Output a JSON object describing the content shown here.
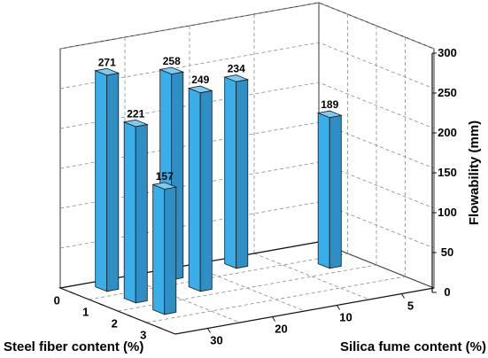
{
  "chart_data": {
    "type": "bar",
    "projection": "3d",
    "x_axis": {
      "label": "Steel fiber content (%)",
      "ticks": [
        "0",
        "1",
        "2",
        "3"
      ]
    },
    "y_axis": {
      "label": "Silica fume content (%)",
      "ticks": [
        "5",
        "10",
        "20",
        "30"
      ]
    },
    "z_axis": {
      "label": "Flowability (mm)",
      "ticks": [
        "0",
        "50",
        "100",
        "150",
        "200",
        "250",
        "300"
      ],
      "range": [
        0,
        300
      ]
    },
    "bar_color": "#3aaee8",
    "bars": [
      {
        "steel_fiber": "2",
        "silica_fume": "30",
        "value": 157,
        "label": "157"
      },
      {
        "steel_fiber": "0",
        "silica_fume": "30",
        "value": 271,
        "label": "271"
      },
      {
        "steel_fiber": "1",
        "silica_fume": "30",
        "value": 221,
        "label": "221"
      },
      {
        "steel_fiber": "0",
        "silica_fume": "20",
        "value": 258,
        "label": "258"
      },
      {
        "steel_fiber": "1",
        "silica_fume": "20",
        "value": 249,
        "label": "249"
      },
      {
        "steel_fiber": "0",
        "silica_fume": "10",
        "value": 234,
        "label": "234"
      },
      {
        "steel_fiber": "1",
        "silica_fume": "5",
        "value": 189,
        "label": "189"
      }
    ]
  }
}
